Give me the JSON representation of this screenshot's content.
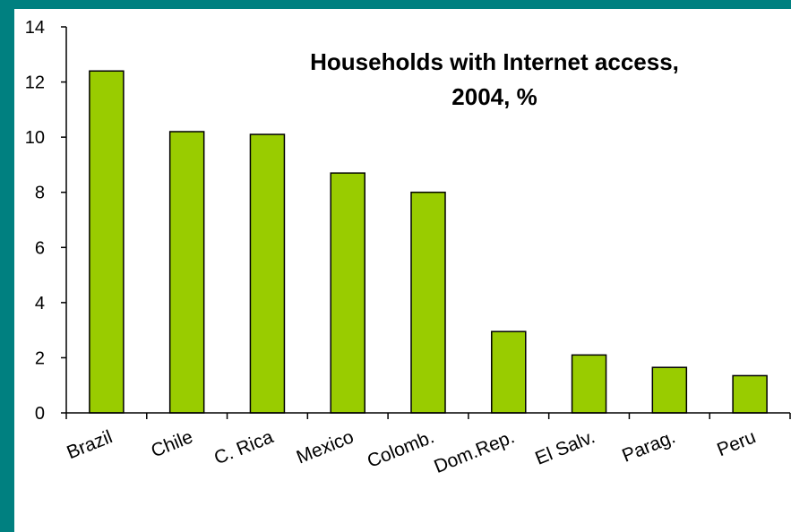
{
  "chart_data": {
    "type": "bar",
    "title_lines": [
      "Households with Internet access,",
      "2004, %"
    ],
    "categories": [
      "Brazil",
      "Chile",
      "C. Rica",
      "Mexico",
      "Colomb.",
      "Dom.Rep.",
      "El Salv.",
      "Parag.",
      "Peru"
    ],
    "values": [
      12.4,
      10.2,
      10.1,
      8.7,
      8.0,
      2.95,
      2.1,
      1.65,
      1.35
    ],
    "ylim": [
      0,
      14
    ],
    "yticks": [
      0,
      2,
      4,
      6,
      8,
      10,
      12,
      14
    ],
    "grid": false,
    "legend": "none",
    "colors": {
      "bar_fill": "#99cc00",
      "bar_stroke": "#000000",
      "background": "#008080"
    }
  }
}
